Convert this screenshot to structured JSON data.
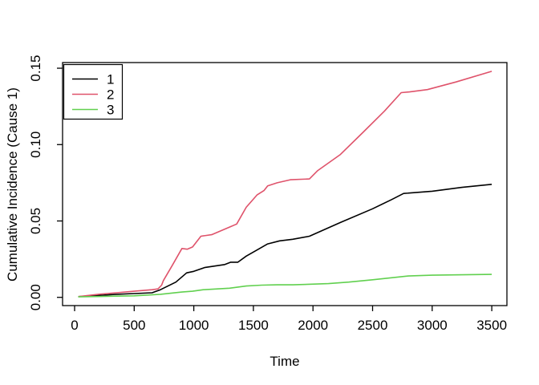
{
  "chart_data": {
    "type": "line",
    "title": "",
    "xlabel": "Time",
    "ylabel": "Cumulative Incidence (Cause 1)",
    "grid": false,
    "legend_position": "topleft",
    "xlim": [
      -101,
      3627
    ],
    "ylim": [
      -0.0054,
      0.1537
    ],
    "x_ticks": [
      0,
      500,
      1000,
      1500,
      2000,
      2500,
      3000,
      3500
    ],
    "x_tick_labels": [
      "0",
      "500",
      "1000",
      "1500",
      "2000",
      "2500",
      "3000",
      "3500"
    ],
    "y_ticks": [
      0,
      0.05,
      0.1,
      0.15
    ],
    "y_tick_labels": [
      "0.00",
      "0.05",
      "0.10",
      "0.15"
    ],
    "axis_color": "#000000",
    "background_color": "#ffffff",
    "legend": [
      {
        "label": "1",
        "color": "#000000"
      },
      {
        "label": "2",
        "color": "#DF536B"
      },
      {
        "label": "3",
        "color": "#61D04F"
      }
    ],
    "series": [
      {
        "name": "1",
        "color": "#000000",
        "points": [
          [
            30,
            0.0005
          ],
          [
            150,
            0.001
          ],
          [
            350,
            0.002
          ],
          [
            500,
            0.0025
          ],
          [
            650,
            0.003
          ],
          [
            720,
            0.005
          ],
          [
            850,
            0.01
          ],
          [
            940,
            0.016
          ],
          [
            1000,
            0.017
          ],
          [
            1090,
            0.0195
          ],
          [
            1260,
            0.0215
          ],
          [
            1310,
            0.023
          ],
          [
            1370,
            0.023
          ],
          [
            1440,
            0.027
          ],
          [
            1530,
            0.031
          ],
          [
            1620,
            0.035
          ],
          [
            1720,
            0.037
          ],
          [
            1830,
            0.038
          ],
          [
            1970,
            0.04
          ],
          [
            2230,
            0.049
          ],
          [
            2500,
            0.058
          ],
          [
            2660,
            0.064
          ],
          [
            2760,
            0.068
          ],
          [
            3000,
            0.0695
          ],
          [
            3250,
            0.072
          ],
          [
            3500,
            0.074
          ]
        ]
      },
      {
        "name": "2",
        "color": "#DF536B",
        "points": [
          [
            30,
            0.0005
          ],
          [
            200,
            0.002
          ],
          [
            350,
            0.003
          ],
          [
            500,
            0.004
          ],
          [
            650,
            0.005
          ],
          [
            700,
            0.0055
          ],
          [
            730,
            0.008
          ],
          [
            745,
            0.011
          ],
          [
            820,
            0.021
          ],
          [
            900,
            0.032
          ],
          [
            945,
            0.0315
          ],
          [
            990,
            0.033
          ],
          [
            1060,
            0.04
          ],
          [
            1150,
            0.041
          ],
          [
            1300,
            0.046
          ],
          [
            1360,
            0.048
          ],
          [
            1440,
            0.059
          ],
          [
            1530,
            0.067
          ],
          [
            1590,
            0.07
          ],
          [
            1620,
            0.073
          ],
          [
            1700,
            0.075
          ],
          [
            1810,
            0.077
          ],
          [
            1970,
            0.0775
          ],
          [
            2040,
            0.083
          ],
          [
            2230,
            0.0935
          ],
          [
            2420,
            0.108
          ],
          [
            2600,
            0.122
          ],
          [
            2740,
            0.134
          ],
          [
            2810,
            0.1345
          ],
          [
            2960,
            0.136
          ],
          [
            3200,
            0.141
          ],
          [
            3500,
            0.148
          ]
        ]
      },
      {
        "name": "3",
        "color": "#61D04F",
        "points": [
          [
            30,
            0.0003
          ],
          [
            350,
            0.0008
          ],
          [
            500,
            0.001
          ],
          [
            720,
            0.002
          ],
          [
            900,
            0.0035
          ],
          [
            990,
            0.004
          ],
          [
            1080,
            0.005
          ],
          [
            1300,
            0.006
          ],
          [
            1440,
            0.0074
          ],
          [
            1570,
            0.008
          ],
          [
            1700,
            0.0082
          ],
          [
            1830,
            0.0082
          ],
          [
            2130,
            0.009
          ],
          [
            2300,
            0.01
          ],
          [
            2500,
            0.0115
          ],
          [
            2800,
            0.014
          ],
          [
            3000,
            0.0145
          ],
          [
            3500,
            0.015
          ]
        ]
      }
    ]
  }
}
